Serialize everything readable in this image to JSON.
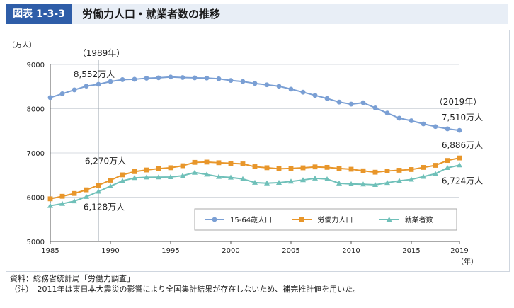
{
  "header": {
    "figure_label": "図表 1-3-3",
    "title": "労働力人口・就業者数の推移"
  },
  "chart_data": {
    "type": "line",
    "title": "",
    "ylabel": "（万人）",
    "xlabel": "（年）",
    "ylim": [
      5000,
      9000
    ],
    "xlim": [
      1985,
      2019
    ],
    "yticks": [
      "5000",
      "6000",
      "7000",
      "8000",
      "9000"
    ],
    "xticks": [
      "1985",
      "1990",
      "1995",
      "2000",
      "2005",
      "2010",
      "2015",
      "2019"
    ],
    "x": [
      1985,
      1986,
      1987,
      1988,
      1989,
      1990,
      1991,
      1992,
      1993,
      1994,
      1995,
      1996,
      1997,
      1998,
      1999,
      2000,
      2001,
      2002,
      2003,
      2004,
      2005,
      2006,
      2007,
      2008,
      2009,
      2010,
      2011,
      2012,
      2013,
      2014,
      2015,
      2016,
      2017,
      2018,
      2019
    ],
    "series": [
      {
        "name": "15-64歳人口",
        "color": "#7a9fd4",
        "marker": "circle",
        "values": [
          8251,
          8337,
          8425,
          8510,
          8552,
          8614,
          8657,
          8665,
          8689,
          8698,
          8716,
          8704,
          8697,
          8692,
          8676,
          8638,
          8614,
          8571,
          8540,
          8508,
          8442,
          8373,
          8301,
          8230,
          8149,
          8103,
          8134,
          8018,
          7901,
          7785,
          7728,
          7656,
          7596,
          7545,
          7510
        ]
      },
      {
        "name": "労働力人口",
        "color": "#e8962a",
        "marker": "square",
        "values": [
          5963,
          6020,
          6084,
          6166,
          6270,
          6384,
          6505,
          6578,
          6615,
          6645,
          6666,
          6711,
          6787,
          6793,
          6779,
          6766,
          6752,
          6689,
          6666,
          6642,
          6651,
          6664,
          6684,
          6674,
          6650,
          6632,
          6596,
          6565,
          6593,
          6609,
          6625,
          6673,
          6720,
          6830,
          6886
        ]
      },
      {
        "name": "就業者数",
        "color": "#6fc0b9",
        "marker": "triangle",
        "values": [
          5807,
          5853,
          5911,
          6011,
          6128,
          6249,
          6369,
          6436,
          6450,
          6453,
          6457,
          6486,
          6557,
          6514,
          6462,
          6446,
          6412,
          6330,
          6316,
          6329,
          6356,
          6389,
          6427,
          6409,
          6314,
          6298,
          6293,
          6280,
          6326,
          6371,
          6401,
          6465,
          6530,
          6664,
          6724
        ]
      }
    ],
    "annotations": [
      {
        "text": "（1989年）"
      },
      {
        "text": "8,552万人"
      },
      {
        "text": "6,270万人"
      },
      {
        "text": "6,128万人"
      },
      {
        "text": "（2019年）"
      },
      {
        "text": "7,510万人"
      },
      {
        "text": "6,886万人"
      },
      {
        "text": "6,724万人"
      }
    ],
    "reference_line_x": 1989,
    "grid": "horizontal",
    "legend_position": "bottom-right"
  },
  "notes": {
    "source": "資料：総務省統計局「労働力調査」",
    "note": "（注）　2011年は東日本大震災の影響により全国集計結果が存在しないため、補完推計値を用いた。"
  }
}
